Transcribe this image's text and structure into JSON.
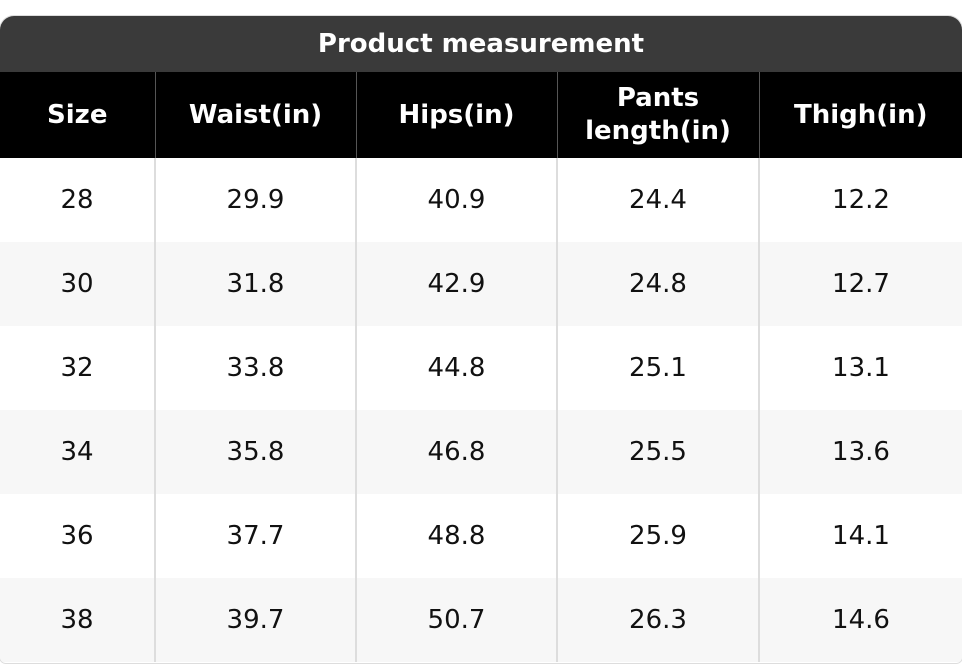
{
  "header": {
    "title": "Product measurement"
  },
  "table": {
    "columns": [
      "Size",
      "Waist(in)",
      "Hips(in)",
      "Pants length(in)",
      "Thigh(in)"
    ],
    "rows": [
      [
        "28",
        "29.9",
        "40.9",
        "24.4",
        "12.2"
      ],
      [
        "30",
        "31.8",
        "42.9",
        "24.8",
        "12.7"
      ],
      [
        "32",
        "33.8",
        "44.8",
        "25.1",
        "13.1"
      ],
      [
        "34",
        "35.8",
        "46.8",
        "25.5",
        "13.6"
      ],
      [
        "36",
        "37.7",
        "48.8",
        "25.9",
        "14.1"
      ],
      [
        "38",
        "39.7",
        "50.7",
        "26.3",
        "14.6"
      ]
    ]
  }
}
